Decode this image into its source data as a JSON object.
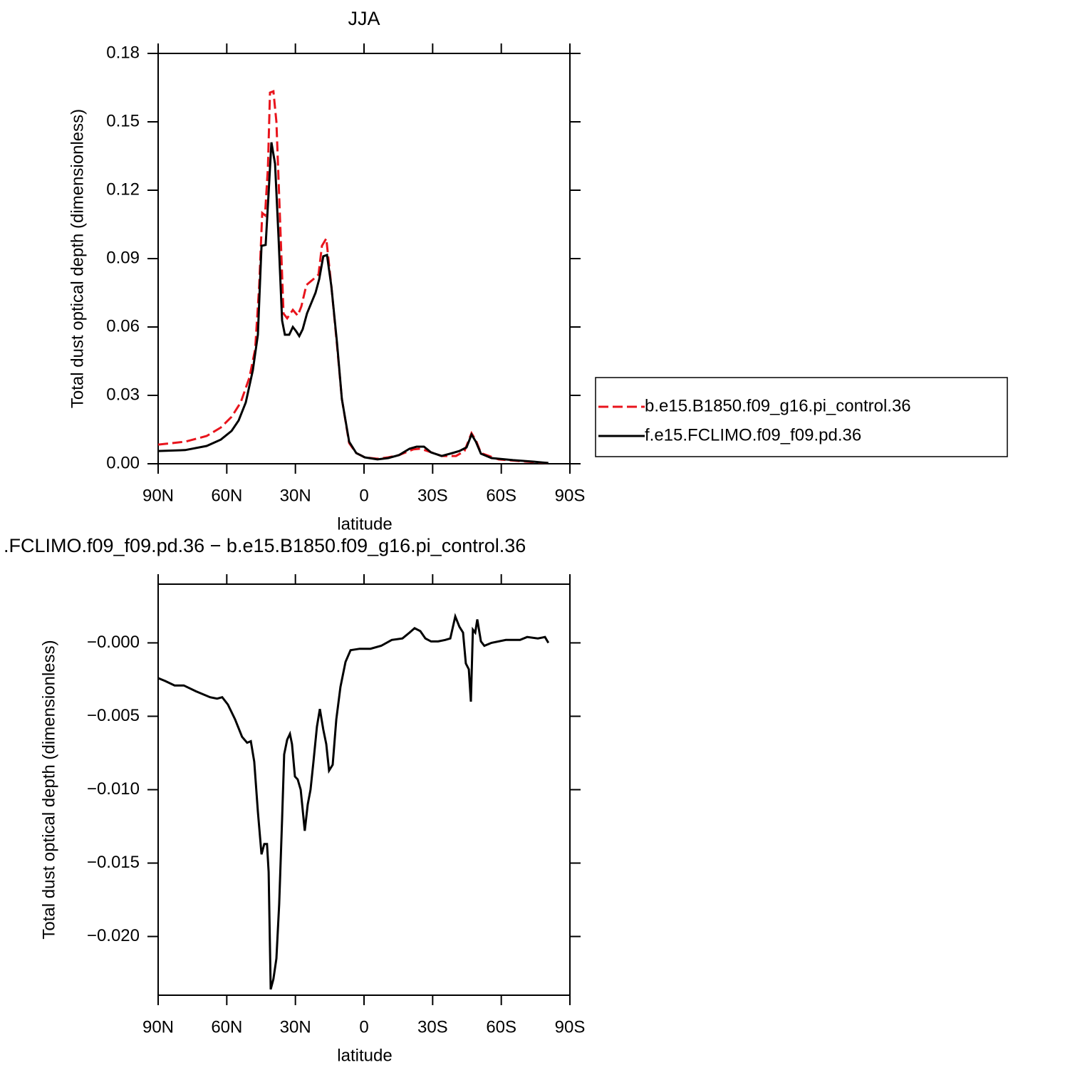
{
  "chart_data": [
    {
      "type": "line",
      "title": "JJA",
      "xlabel": "latitude",
      "ylabel": "Total dust optical depth (dimensionless)",
      "xlim": [
        90,
        -90
      ],
      "xticks": [
        {
          "value": 90,
          "label": "90N"
        },
        {
          "value": 60,
          "label": "60N"
        },
        {
          "value": 30,
          "label": "30N"
        },
        0,
        {
          "value": -30,
          "label": "30S"
        },
        {
          "value": -60,
          "label": "60S"
        },
        {
          "value": -90,
          "label": "90S"
        }
      ],
      "ylim": [
        0,
        0.18
      ],
      "yticks": [
        {
          "value": 0,
          "label": "0.00"
        },
        {
          "value": 0.03,
          "label": "0.03"
        },
        {
          "value": 0.06,
          "label": "0.06"
        },
        {
          "value": 0.09,
          "label": "0.09"
        },
        {
          "value": 0.12,
          "label": "0.12"
        },
        {
          "value": 0.15,
          "label": "0.15"
        },
        {
          "value": 0.18,
          "label": "0.18"
        }
      ],
      "legend": "right",
      "series": [
        {
          "name": "b.e15.B1850.f09_g16.pi_control.36",
          "color": "#e8141c",
          "line_style": "dashed",
          "x": [
            90,
            78.2,
            68.8,
            62.6,
            57.9,
            53.9,
            50.1,
            47.6,
            45.8,
            44.5,
            43.3,
            42.0,
            41.1,
            39.6,
            38.3,
            36.8,
            35.2,
            33.6,
            31.1,
            29.0,
            27.4,
            25.2,
            22.1,
            19.9,
            18.4,
            16.5,
            14.3,
            11.8,
            9.7,
            6.5,
            3.4,
            -0.3,
            -5.9,
            -10.6,
            -15.3,
            -21.5,
            -24.6,
            -27.7,
            -33.9,
            -40.2,
            -43.9,
            -47.0,
            -48.9,
            -51.1,
            -58.9,
            -71.3,
            -80.6
          ],
          "values": [
            0.0084,
            0.0097,
            0.0122,
            0.0159,
            0.0206,
            0.0269,
            0.0378,
            0.0503,
            0.0784,
            0.11,
            0.109,
            0.13,
            0.1628,
            0.1634,
            0.15,
            0.1097,
            0.0659,
            0.0638,
            0.0675,
            0.065,
            0.069,
            0.0784,
            0.081,
            0.083,
            0.0956,
            0.0988,
            0.078,
            0.0519,
            0.0284,
            0.0091,
            0.0047,
            0.0028,
            0.0022,
            0.0028,
            0.0038,
            0.0063,
            0.0066,
            0.0056,
            0.0034,
            0.0034,
            0.0056,
            0.0134,
            0.0103,
            0.0047,
            0.0019,
            0.0009,
            0.0003
          ]
        },
        {
          "name": "f.e15.FCLIMO.f09_f09.pd.36",
          "color": "#000000",
          "line_style": "solid",
          "x": [
            90,
            78.2,
            68.8,
            62.6,
            57.9,
            54.8,
            51.7,
            48.6,
            46.4,
            44.8,
            43.0,
            41.7,
            40.5,
            38.9,
            37.4,
            35.8,
            34.6,
            32.7,
            31.1,
            29.6,
            28.3,
            26.8,
            24.9,
            23.0,
            21.2,
            19.6,
            17.8,
            16.2,
            14.3,
            11.8,
            9.7,
            6.5,
            3.4,
            -0.3,
            -5.9,
            -10.6,
            -15.3,
            -19.9,
            -23.0,
            -26.2,
            -29.3,
            -33.9,
            -38.6,
            -41.7,
            -44.8,
            -47.0,
            -48.9,
            -51.1,
            -55.7,
            -65.1,
            -74.4,
            -80.6
          ],
          "values": [
            0.0056,
            0.006,
            0.0078,
            0.0106,
            0.0144,
            0.019,
            0.0269,
            0.041,
            0.0566,
            0.0956,
            0.096,
            0.119,
            0.141,
            0.1316,
            0.1,
            0.0628,
            0.0566,
            0.0566,
            0.06,
            0.058,
            0.056,
            0.059,
            0.066,
            0.0706,
            0.075,
            0.081,
            0.091,
            0.0916,
            0.078,
            0.053,
            0.0284,
            0.0097,
            0.0047,
            0.0028,
            0.0019,
            0.0025,
            0.0038,
            0.0066,
            0.0075,
            0.0075,
            0.005,
            0.0034,
            0.0047,
            0.0056,
            0.0072,
            0.0128,
            0.0097,
            0.0044,
            0.0025,
            0.0016,
            0.0009,
            0.0003
          ]
        }
      ]
    },
    {
      "type": "line",
      "title": ".FCLIMO.f09_f09.pd.36 − b.e15.B1850.f09_g16.pi_control.36",
      "xlabel": "latitude",
      "ylabel": "Total dust optical depth (dimensionless)",
      "xlim": [
        90,
        -90
      ],
      "xticks": [
        {
          "value": 90,
          "label": "90N"
        },
        {
          "value": 60,
          "label": "60N"
        },
        {
          "value": 30,
          "label": "30N"
        },
        0,
        {
          "value": -30,
          "label": "30S"
        },
        {
          "value": -60,
          "label": "60S"
        },
        {
          "value": -90,
          "label": "90S"
        }
      ],
      "ylim": [
        -0.024,
        0.004
      ],
      "yticks": [
        {
          "value": 0,
          "label": "−0.000"
        },
        {
          "value": -0.005,
          "label": "−0.005"
        },
        {
          "value": -0.01,
          "label": "−0.010"
        },
        {
          "value": -0.015,
          "label": "−0.015"
        },
        {
          "value": -0.02,
          "label": "−0.020"
        }
      ],
      "series": [
        {
          "color": "#000000",
          "line_style": "solid",
          "x": [
            90,
            86.9,
            82.8,
            78.8,
            73.5,
            67.3,
            64.2,
            62.0,
            59.5,
            56.4,
            53.3,
            51.1,
            49.5,
            48.0,
            46.4,
            44.8,
            43.6,
            42.4,
            41.7,
            40.8,
            39.6,
            38.3,
            37.1,
            35.8,
            34.9,
            33.6,
            32.4,
            31.5,
            30.2,
            29.0,
            27.7,
            25.9,
            24.6,
            23.4,
            22.1,
            20.6,
            19.3,
            17.8,
            16.5,
            15.3,
            13.7,
            12.1,
            10.3,
            8.1,
            5.9,
            1.9,
            -2.8,
            -7.5,
            -12.1,
            -16.8,
            -19.9,
            -22.1,
            -24.6,
            -26.8,
            -29.3,
            -32.4,
            -35.5,
            -37.7,
            -39.9,
            -41.7,
            -43.3,
            -44.5,
            -45.8,
            -46.7,
            -47.6,
            -48.6,
            -49.5,
            -51.1,
            -52.6,
            -55.7,
            -62.0,
            -68.2,
            -71.3,
            -76.0,
            -79.1,
            -80.6
          ],
          "values": [
            -0.0024,
            -0.0026,
            -0.0029,
            -0.0029,
            -0.0033,
            -0.0037,
            -0.0038,
            -0.0037,
            -0.0042,
            -0.0052,
            -0.0064,
            -0.0068,
            -0.0067,
            -0.0081,
            -0.0115,
            -0.0144,
            -0.0137,
            -0.0137,
            -0.0156,
            -0.0236,
            -0.0229,
            -0.0215,
            -0.0178,
            -0.012,
            -0.0076,
            -0.0066,
            -0.0062,
            -0.0069,
            -0.0091,
            -0.0093,
            -0.01,
            -0.0128,
            -0.011,
            -0.01,
            -0.0081,
            -0.0057,
            -0.0045,
            -0.0059,
            -0.0069,
            -0.0087,
            -0.0083,
            -0.0052,
            -0.003,
            -0.0013,
            -0.0005,
            -0.0004,
            -0.0004,
            -0.0002,
            0.0002,
            0.0003,
            0.0007,
            0.001,
            0.0008,
            0.0003,
            0.0001,
            0.0001,
            0.0002,
            0.0003,
            0.0018,
            0.0011,
            0.0007,
            -0.0014,
            -0.0018,
            -0.004,
            0.0009,
            0.0007,
            0.0016,
            0.0001,
            -0.0002,
            0,
            0.0002,
            0.0002,
            0.0004,
            0.0003,
            0.0004,
            0
          ]
        }
      ]
    }
  ]
}
